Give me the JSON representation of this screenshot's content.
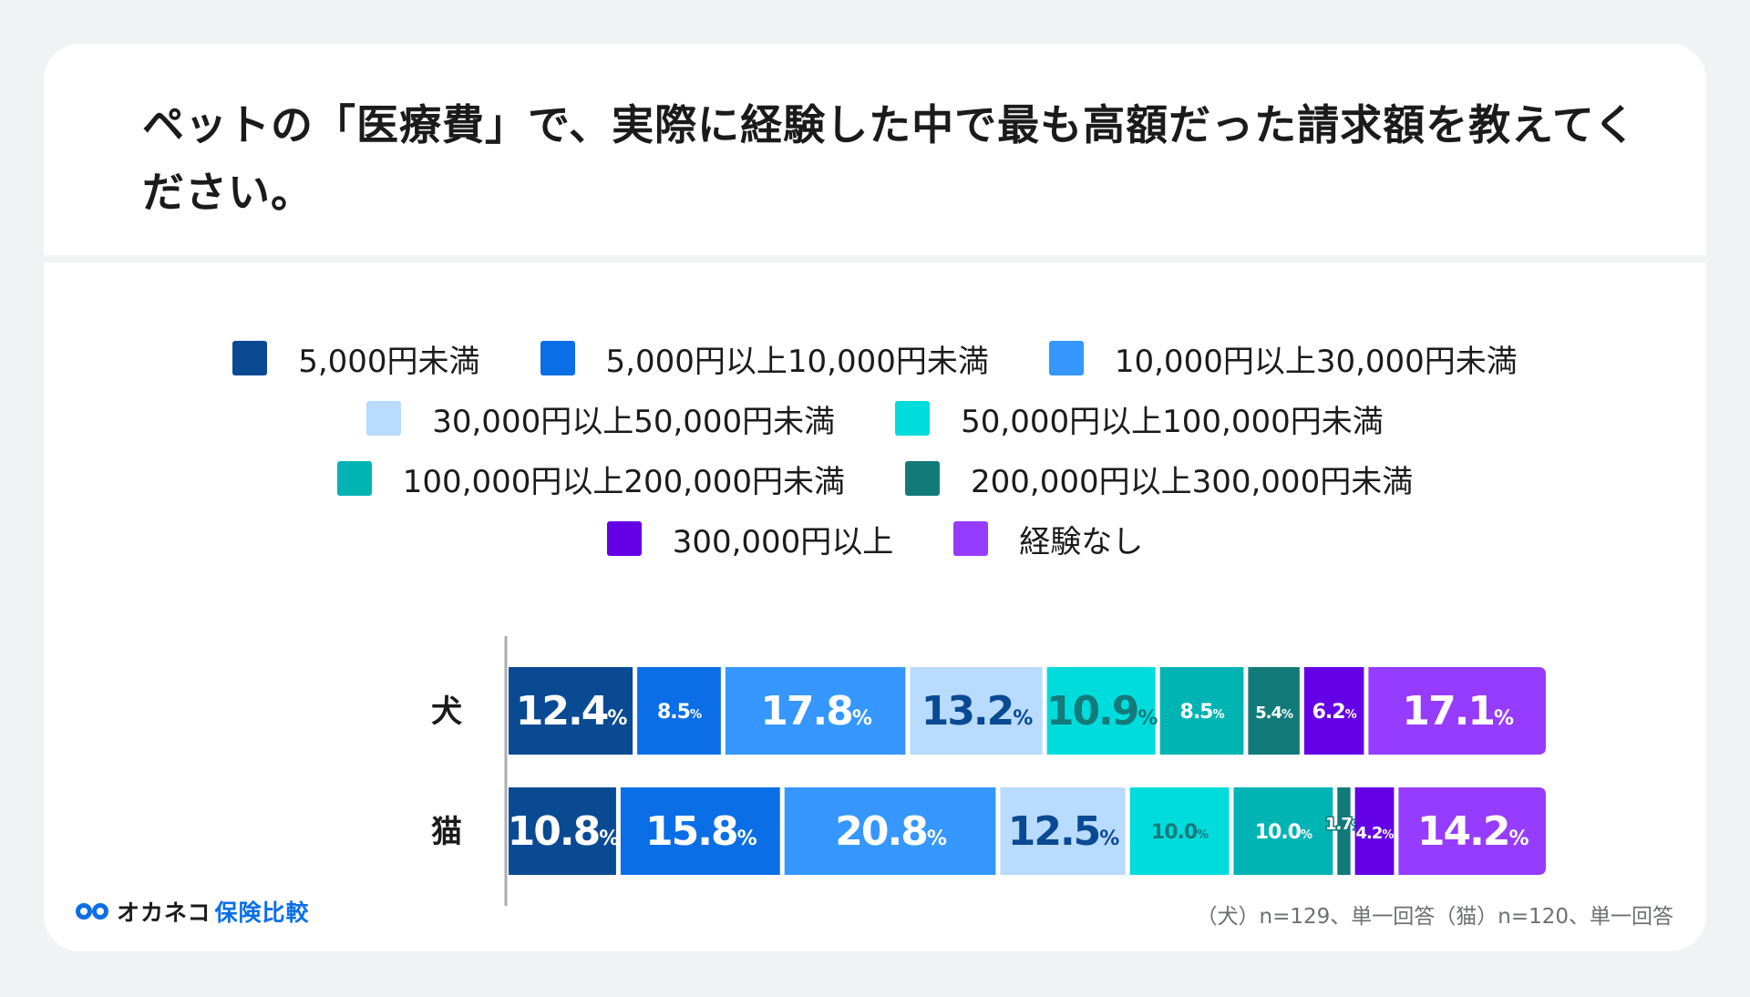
{
  "title": "ペットの「医療費」で、実際に経験した中で最も高額だった請求額を教えてください。",
  "logo": {
    "icon": "okaneko-logo-icon",
    "main": "オカネコ",
    "sub": "保険比較"
  },
  "footnote": "（犬）n=129、単一回答（猫）n=120、単一回答",
  "chart_data": {
    "type": "bar",
    "orientation": "horizontal",
    "stacked": true,
    "unit": "%",
    "categories": [
      "犬",
      "猫"
    ],
    "legend": [
      [
        "5,000円未満",
        "5,000円以上10,000円未満",
        "10,000円以上30,000円未満"
      ],
      [
        "30,000円以上50,000円未満",
        "50,000円以上100,000円未満"
      ],
      [
        "100,000円以上200,000円未満",
        "200,000円以上300,000円未満"
      ],
      [
        "300,000円以上",
        "経験なし"
      ]
    ],
    "series": [
      {
        "name": "5,000円未満",
        "color": "#0a4a93",
        "values": [
          12.4,
          10.8
        ]
      },
      {
        "name": "5,000円以上10,000円未満",
        "color": "#0a6fe6",
        "values": [
          8.5,
          15.8
        ]
      },
      {
        "name": "10,000円以上30,000円未満",
        "color": "#3597ff",
        "values": [
          17.8,
          20.8
        ]
      },
      {
        "name": "30,000円以上50,000円未満",
        "color": "#b8dbff",
        "values": [
          13.2,
          12.5
        ]
      },
      {
        "name": "50,000円以上100,000円未満",
        "color": "#00dcdc",
        "values": [
          10.9,
          10.0
        ]
      },
      {
        "name": "100,000円以上200,000円未満",
        "color": "#00b4b4",
        "values": [
          8.5,
          10.0
        ]
      },
      {
        "name": "200,000円以上300,000円未満",
        "color": "#137a7a",
        "values": [
          5.4,
          1.7
        ]
      },
      {
        "name": "300,000円以上",
        "color": "#6400e6",
        "values": [
          6.2,
          4.2
        ]
      },
      {
        "name": "経験なし",
        "color": "#963cff",
        "values": [
          17.1,
          14.2
        ]
      }
    ],
    "labels": [
      [
        "12.4",
        "8.5",
        "17.8",
        "13.2",
        "10.9",
        "8.5",
        "5.4",
        "6.2",
        "17.1"
      ],
      [
        "10.8",
        "15.8",
        "20.8",
        "12.5",
        "10.0",
        "10.0",
        "1.7",
        "4.2",
        "14.2"
      ]
    ],
    "xlim": [
      0,
      100
    ]
  }
}
